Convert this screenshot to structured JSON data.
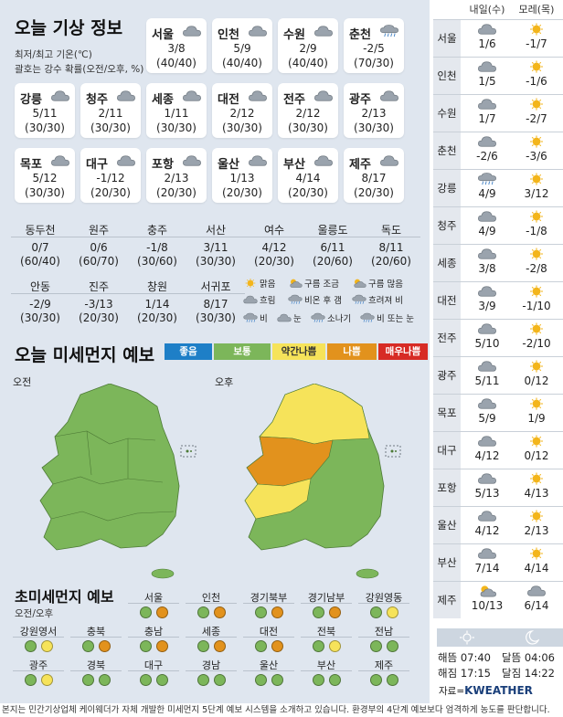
{
  "weather": {
    "title": "오늘 기상 정보",
    "sub1": "최저/최고 기온(℃)",
    "sub2": "괄호는 강수 확률(오전/오후, %)",
    "cards": [
      {
        "name": "서울",
        "temp": "3/8",
        "prob": "(40/40)",
        "icon": "cloud-icon"
      },
      {
        "name": "인천",
        "temp": "5/9",
        "prob": "(40/40)",
        "icon": "cloud-icon"
      },
      {
        "name": "수원",
        "temp": "2/9",
        "prob": "(40/40)",
        "icon": "cloud-icon"
      },
      {
        "name": "춘천",
        "temp": "-2/5",
        "prob": "(70/30)",
        "icon": "rain-icon"
      },
      {
        "name": "강릉",
        "temp": "5/11",
        "prob": "(30/30)",
        "icon": "cloud-icon"
      },
      {
        "name": "청주",
        "temp": "2/11",
        "prob": "(30/30)",
        "icon": "cloud-icon"
      },
      {
        "name": "세종",
        "temp": "1/11",
        "prob": "(30/30)",
        "icon": "cloud-icon"
      },
      {
        "name": "대전",
        "temp": "2/12",
        "prob": "(30/30)",
        "icon": "cloud-icon"
      },
      {
        "name": "전주",
        "temp": "2/12",
        "prob": "(30/30)",
        "icon": "cloud-icon"
      },
      {
        "name": "광주",
        "temp": "2/13",
        "prob": "(30/30)",
        "icon": "cloud-icon"
      },
      {
        "name": "목포",
        "temp": "5/12",
        "prob": "(30/30)",
        "icon": "cloud-icon"
      },
      {
        "name": "대구",
        "temp": "-1/12",
        "prob": "(20/30)",
        "icon": "cloud-icon"
      },
      {
        "name": "포항",
        "temp": "2/13",
        "prob": "(20/30)",
        "icon": "cloud-icon"
      },
      {
        "name": "울산",
        "temp": "1/13",
        "prob": "(20/30)",
        "icon": "cloud-icon"
      },
      {
        "name": "부산",
        "temp": "4/14",
        "prob": "(20/30)",
        "icon": "cloud-icon"
      },
      {
        "name": "제주",
        "temp": "8/17",
        "prob": "(20/30)",
        "icon": "cloud-icon"
      }
    ],
    "small": [
      {
        "name": "동두천",
        "temp": "0/7",
        "prob": "(60/40)"
      },
      {
        "name": "원주",
        "temp": "0/6",
        "prob": "(60/70)"
      },
      {
        "name": "충주",
        "temp": "-1/8",
        "prob": "(30/60)"
      },
      {
        "name": "서산",
        "temp": "3/11",
        "prob": "(30/30)"
      },
      {
        "name": "여수",
        "temp": "4/12",
        "prob": "(20/30)"
      },
      {
        "name": "울릉도",
        "temp": "6/11",
        "prob": "(20/60)"
      },
      {
        "name": "독도",
        "temp": "8/11",
        "prob": "(20/60)"
      },
      {
        "name": "안동",
        "temp": "-2/9",
        "prob": "(30/30)"
      },
      {
        "name": "진주",
        "temp": "-3/13",
        "prob": "(20/30)"
      },
      {
        "name": "창원",
        "temp": "1/14",
        "prob": "(20/30)"
      },
      {
        "name": "서귀포",
        "temp": "8/17",
        "prob": "(30/30)"
      }
    ],
    "legend": {
      "sunny": "맑음",
      "partly": "구름 조금",
      "mostly": "구름 많음",
      "cloudy": "흐림",
      "rain_after": "비온 후 갬",
      "cloudy_rain": "흐려져 비",
      "rain": "비",
      "snow": "눈",
      "shower": "소나기",
      "rain_snow": "비 또는 눈"
    }
  },
  "dust": {
    "title": "오늘 미세먼지 예보",
    "am": "오전",
    "pm": "오후",
    "levels": [
      {
        "label": "좋음",
        "color": "#1e7fc7"
      },
      {
        "label": "보통",
        "color": "#7cb65a"
      },
      {
        "label": "약간나쁨",
        "color": "#f6e35a"
      },
      {
        "label": "나쁨",
        "color": "#e2921d"
      },
      {
        "label": "매우나쁨",
        "color": "#d72b25"
      }
    ]
  },
  "ultra": {
    "title": "초미세먼지 예보",
    "sub": "오전/오후",
    "regions": [
      {
        "name": "서울",
        "am": "#7cb65a",
        "pm": "#e2921d"
      },
      {
        "name": "인천",
        "am": "#7cb65a",
        "pm": "#e2921d"
      },
      {
        "name": "경기북부",
        "am": "#7cb65a",
        "pm": "#e2921d"
      },
      {
        "name": "경기남부",
        "am": "#7cb65a",
        "pm": "#e2921d"
      },
      {
        "name": "강원영동",
        "am": "#7cb65a",
        "pm": "#f6e35a"
      },
      {
        "name": "강원영서",
        "am": "#7cb65a",
        "pm": "#f6e35a"
      },
      {
        "name": "충북",
        "am": "#7cb65a",
        "pm": "#e2921d"
      },
      {
        "name": "충남",
        "am": "#7cb65a",
        "pm": "#e2921d"
      },
      {
        "name": "세종",
        "am": "#7cb65a",
        "pm": "#e2921d"
      },
      {
        "name": "대전",
        "am": "#7cb65a",
        "pm": "#e2921d"
      },
      {
        "name": "전북",
        "am": "#7cb65a",
        "pm": "#f6e35a"
      },
      {
        "name": "전남",
        "am": "#7cb65a",
        "pm": "#7cb65a"
      },
      {
        "name": "광주",
        "am": "#7cb65a",
        "pm": "#f6e35a"
      },
      {
        "name": "경북",
        "am": "#7cb65a",
        "pm": "#7cb65a"
      },
      {
        "name": "대구",
        "am": "#7cb65a",
        "pm": "#7cb65a"
      },
      {
        "name": "경남",
        "am": "#7cb65a",
        "pm": "#7cb65a"
      },
      {
        "name": "울산",
        "am": "#7cb65a",
        "pm": "#7cb65a"
      },
      {
        "name": "부산",
        "am": "#7cb65a",
        "pm": "#7cb65a"
      },
      {
        "name": "제주",
        "am": "#7cb65a",
        "pm": "#7cb65a"
      }
    ]
  },
  "forecast": {
    "head1": "내일(수)",
    "head2": "모레(목)",
    "rows": [
      {
        "city": "서울",
        "d1": "1/6",
        "d2": "-1/7",
        "i1": "cloud-icon",
        "i2": "sun-icon"
      },
      {
        "city": "인천",
        "d1": "1/5",
        "d2": "-1/6",
        "i1": "cloud-icon",
        "i2": "sun-icon"
      },
      {
        "city": "수원",
        "d1": "1/7",
        "d2": "-2/7",
        "i1": "cloud-icon",
        "i2": "sun-icon"
      },
      {
        "city": "춘천",
        "d1": "-2/6",
        "d2": "-3/6",
        "i1": "cloud-icon",
        "i2": "sun-icon"
      },
      {
        "city": "강릉",
        "d1": "4/9",
        "d2": "3/12",
        "i1": "rain-icon",
        "i2": "sun-icon"
      },
      {
        "city": "청주",
        "d1": "4/9",
        "d2": "-1/8",
        "i1": "cloud-icon",
        "i2": "sun-icon"
      },
      {
        "city": "세종",
        "d1": "3/8",
        "d2": "-2/8",
        "i1": "cloud-icon",
        "i2": "sun-icon"
      },
      {
        "city": "대전",
        "d1": "3/9",
        "d2": "-1/10",
        "i1": "cloud-icon",
        "i2": "sun-icon"
      },
      {
        "city": "전주",
        "d1": "5/10",
        "d2": "-2/10",
        "i1": "cloud-icon",
        "i2": "sun-icon"
      },
      {
        "city": "광주",
        "d1": "5/11",
        "d2": "0/12",
        "i1": "cloud-icon",
        "i2": "sun-icon"
      },
      {
        "city": "목포",
        "d1": "5/9",
        "d2": "1/9",
        "i1": "cloud-icon",
        "i2": "sun-icon"
      },
      {
        "city": "대구",
        "d1": "4/12",
        "d2": "0/12",
        "i1": "cloud-icon",
        "i2": "sun-icon"
      },
      {
        "city": "포항",
        "d1": "5/13",
        "d2": "4/13",
        "i1": "cloud-icon",
        "i2": "sun-icon"
      },
      {
        "city": "울산",
        "d1": "4/12",
        "d2": "2/13",
        "i1": "cloud-icon",
        "i2": "sun-icon"
      },
      {
        "city": "부산",
        "d1": "7/14",
        "d2": "4/14",
        "i1": "cloud-icon",
        "i2": "sun-icon"
      },
      {
        "city": "제주",
        "d1": "10/13",
        "d2": "6/14",
        "i1": "partly-cloud-icon",
        "i2": "cloud-icon"
      }
    ],
    "sunrise": "해뜸 07:40",
    "sunset": "해짐 17:15",
    "moonrise": "달뜸 04:06",
    "moonset": "달짐 14:22",
    "source_label": "자료=",
    "source_brand": "KWEATHER"
  },
  "footer": "본지는 민간기상업체 케이웨더가 자체 개발한 미세먼지 5단계 예보 시스템을 소개하고 있습니다. 환경부의 4단계 예보보다 엄격하게 농도를 판단합니다."
}
